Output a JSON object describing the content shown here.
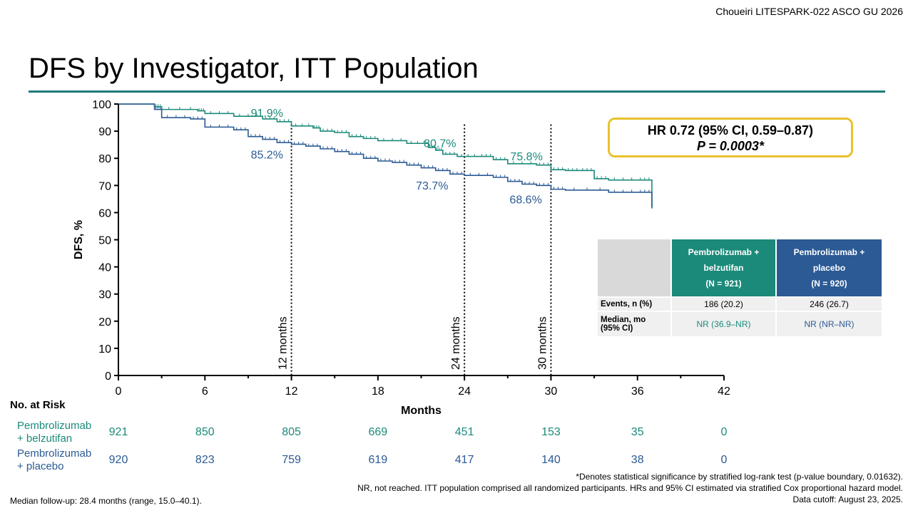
{
  "citation": "Choueiri LITESPARK-022 ASCO GU 2026",
  "title": "DFS by Investigator, ITT Population",
  "hr_box": {
    "line1": "HR 0.72 (95% CI, 0.59–0.87)",
    "line2": "P = 0.0003*"
  },
  "colors": {
    "belzutifan": "#1b8a7a",
    "placebo": "#2b5a94",
    "accent": "#1f7a78",
    "hr_border": "#e8c22e"
  },
  "chart_data": {
    "type": "line",
    "xlabel": "Months",
    "ylabel": "DFS, %",
    "xlim": [
      0,
      42
    ],
    "ylim": [
      0,
      100
    ],
    "xticks": [
      0,
      6,
      12,
      18,
      24,
      30,
      36,
      42
    ],
    "yticks": [
      0,
      10,
      20,
      30,
      40,
      50,
      60,
      70,
      80,
      90,
      100
    ],
    "series": [
      {
        "name": "Pembrolizumab + belzutifan",
        "color": "#1b8a7a",
        "x": [
          0,
          2.5,
          3,
          5.5,
          6,
          8,
          10,
          11,
          12,
          13.5,
          14,
          15,
          16,
          17,
          18,
          20,
          21.5,
          22,
          22.5,
          23.5,
          25,
          26,
          27,
          29,
          30,
          31,
          32,
          33,
          34,
          36,
          37
        ],
        "y": [
          100,
          99,
          98,
          97.5,
          96.5,
          95.5,
          94.5,
          93.5,
          91.9,
          91.2,
          90,
          89.5,
          88,
          87.3,
          86.5,
          85.5,
          84,
          83,
          81.5,
          80.7,
          80.7,
          79.5,
          78,
          77.5,
          75.8,
          75.5,
          75.5,
          72.5,
          72,
          72,
          61.5
        ]
      },
      {
        "name": "Pembrolizumab + placebo",
        "color": "#2b5a94",
        "x": [
          0,
          2.5,
          3,
          5,
          6,
          8,
          9,
          10,
          11,
          12,
          13,
          14,
          15,
          16,
          17,
          18,
          19,
          20,
          21,
          22,
          23,
          24,
          26,
          27,
          28,
          29,
          30,
          31,
          34,
          36,
          37
        ],
        "y": [
          100,
          98,
          95,
          94.5,
          91.5,
          90.5,
          88,
          87,
          85.8,
          85.2,
          84.5,
          83.5,
          82.5,
          81.5,
          80,
          79,
          78.5,
          77.5,
          76.5,
          75.5,
          74.2,
          73.7,
          73,
          71.5,
          70.5,
          70,
          68.6,
          68.3,
          67.5,
          67.5,
          62
        ]
      }
    ],
    "annotations": [
      {
        "x": 12,
        "y": 91.9,
        "label": "91.9%",
        "series": "belzutifan"
      },
      {
        "x": 12,
        "y": 85.2,
        "label": "85.2%",
        "series": "placebo"
      },
      {
        "x": 24,
        "y": 80.7,
        "label": "80.7%",
        "series": "belzutifan"
      },
      {
        "x": 24,
        "y": 73.7,
        "label": "73.7%",
        "series": "placebo"
      },
      {
        "x": 30,
        "y": 75.8,
        "label": "75.8%",
        "series": "belzutifan"
      },
      {
        "x": 30,
        "y": 68.6,
        "label": "68.6%",
        "series": "placebo"
      }
    ],
    "vlines": [
      {
        "x": 12,
        "label": "12 months"
      },
      {
        "x": 24,
        "label": "24 months"
      },
      {
        "x": 30,
        "label": "30 months"
      }
    ]
  },
  "summary_table": {
    "col1": {
      "line1": "Pembrolizumab +",
      "line2": "belzutifan",
      "line3": "(N = 921)"
    },
    "col2": {
      "line1": "Pembrolizumab +",
      "line2": "placebo",
      "line3": "(N = 920)"
    },
    "events_label": "Events, n (%)",
    "events": [
      "186 (20.2)",
      "246 (26.7)"
    ],
    "median_label_1": "Median, mo",
    "median_label_2": "(95% CI)",
    "median": [
      "NR (36.9–NR)",
      "NR (NR–NR)"
    ]
  },
  "risk": {
    "title": "No. at Risk",
    "rows": [
      {
        "label1": "Pembrolizumab",
        "label2": "+ belzutifan",
        "values": [
          "921",
          "850",
          "805",
          "669",
          "451",
          "153",
          "35",
          "0"
        ]
      },
      {
        "label1": "Pembrolizumab",
        "label2": "+ placebo",
        "values": [
          "920",
          "823",
          "759",
          "619",
          "417",
          "140",
          "38",
          "0"
        ]
      }
    ]
  },
  "footnotes": {
    "line1": "*Denotes statistical significance by stratified log-rank test (p-value boundary, 0.01632).",
    "line2": "NR, not reached. ITT population comprised all randomized participants. HRs and 95% CI estimated via stratified Cox proportional hazard model.",
    "line3": "Data cutoff: August 23, 2025."
  },
  "median_followup": "Median follow-up: 28.4 months (range, 15.0–40.1)."
}
